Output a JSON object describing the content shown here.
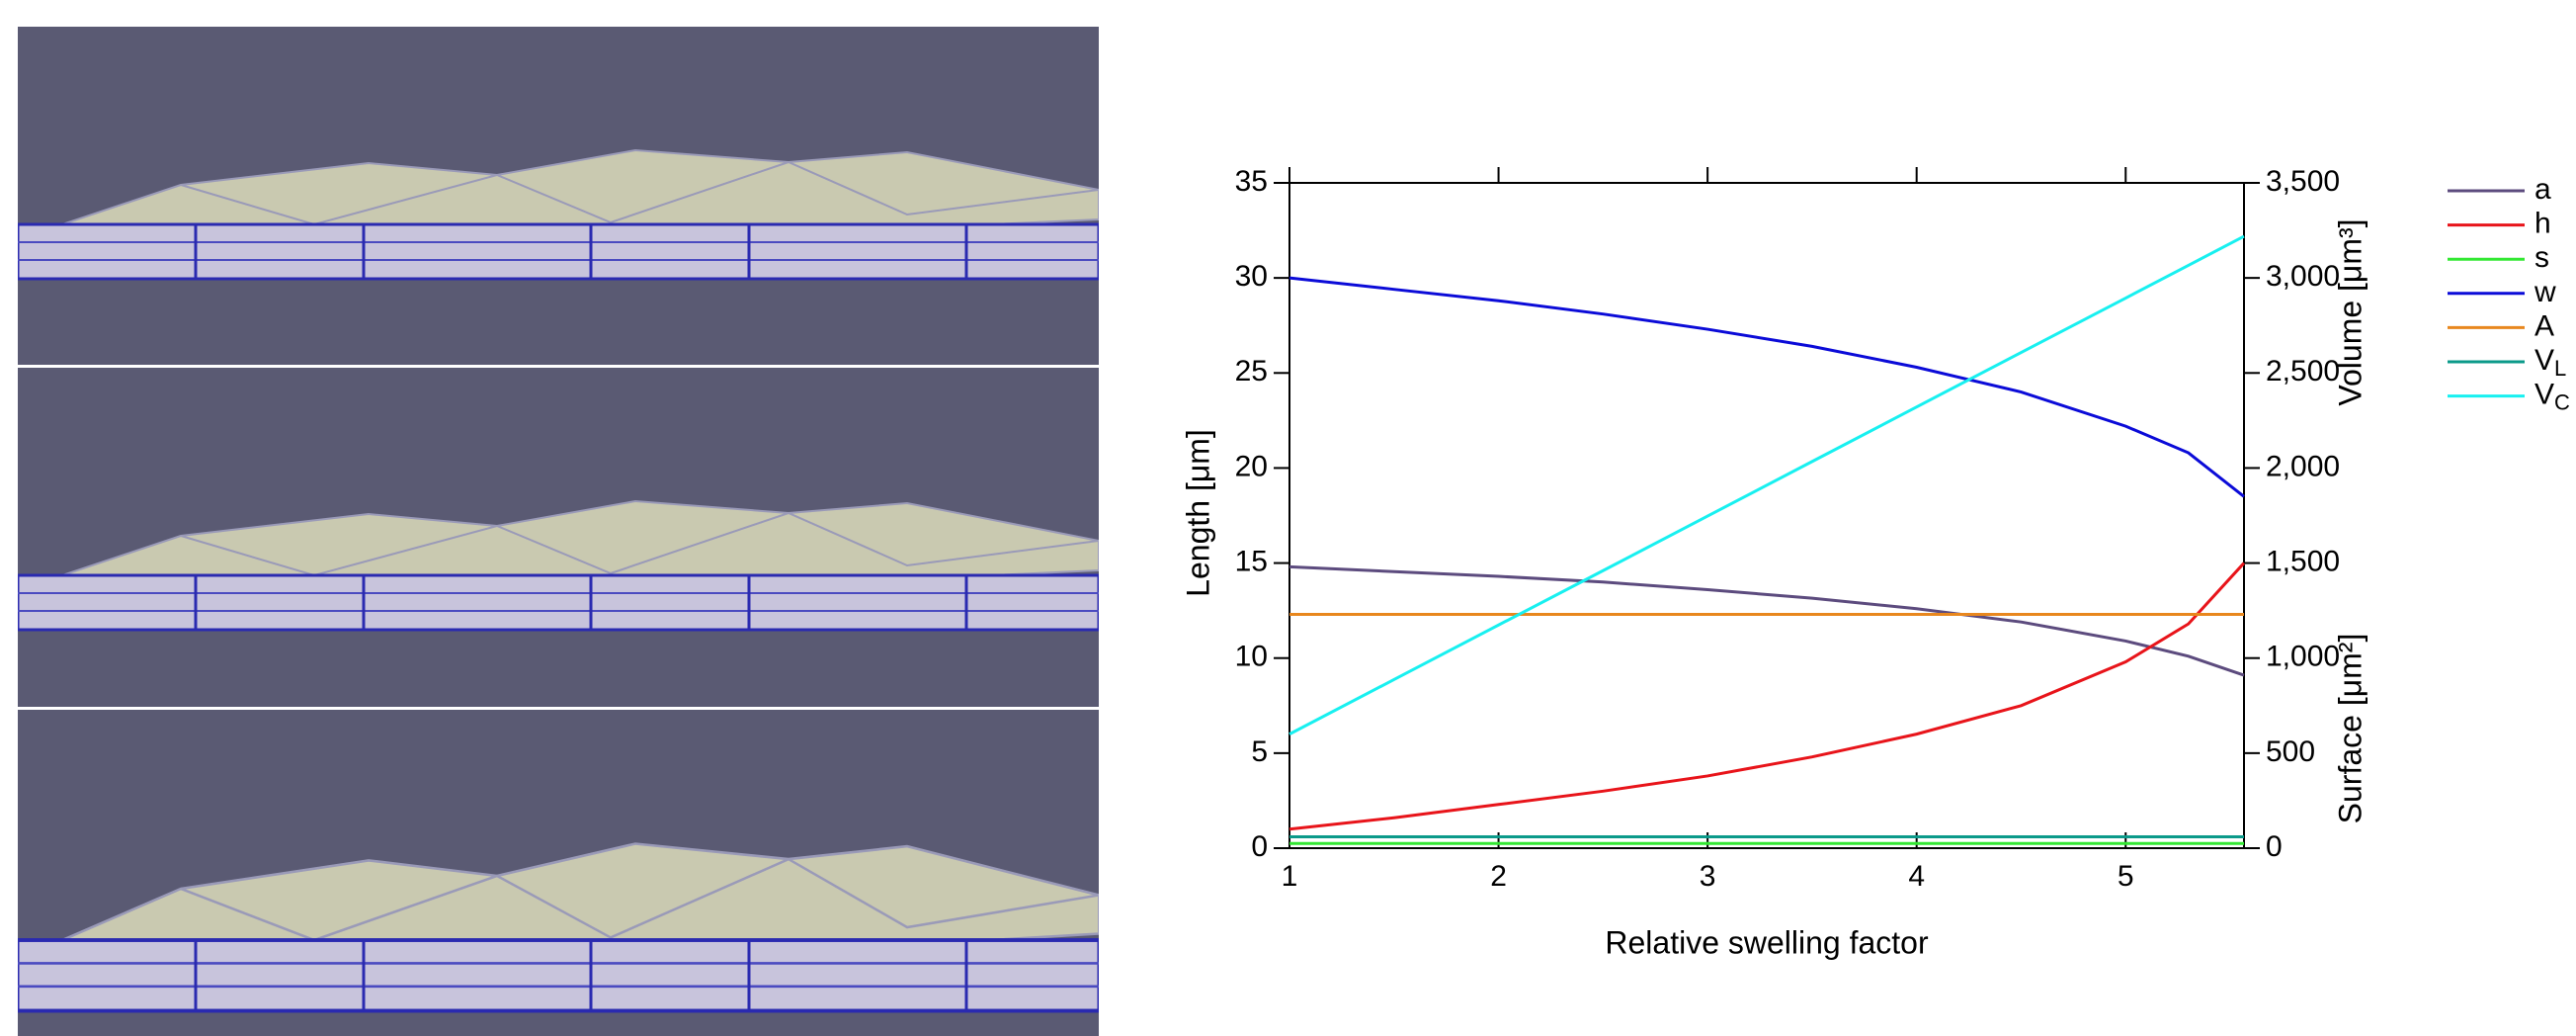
{
  "chart_data": {
    "type": "line",
    "x_label": "Relative swelling factor",
    "y_label": "Length [μm]",
    "y2_labels": [
      "Volume [μm³]",
      "Surface [μm²]"
    ],
    "x": [
      1,
      1.5,
      2,
      2.5,
      3,
      3.5,
      4,
      4.5,
      5,
      5.3,
      5.566
    ],
    "xlim": [
      1,
      5.566
    ],
    "xticks": [
      1,
      2,
      3,
      4,
      5
    ],
    "ylim": [
      0,
      35
    ],
    "yticks": [
      0,
      5,
      10,
      15,
      20,
      25,
      30,
      35
    ],
    "y2lim": [
      0,
      3500
    ],
    "y2ticks": [
      0,
      500,
      {
        "value": 1000,
        "label": "1,000"
      },
      {
        "value": 1500,
        "label": "1,500"
      },
      {
        "value": 2000,
        "label": "2,000"
      },
      {
        "value": 2500,
        "label": "2,500"
      },
      {
        "value": 3000,
        "label": "3,000"
      },
      {
        "value": 3500,
        "label": "3,500"
      }
    ],
    "series": [
      {
        "name": "a",
        "color": "#5c4b7e",
        "values": [
          14.8,
          14.55,
          14.3,
          14.0,
          13.6,
          13.15,
          12.6,
          11.9,
          10.9,
          10.1,
          9.1
        ]
      },
      {
        "name": "h",
        "color": "#e8141a",
        "values": [
          1.0,
          1.6,
          2.3,
          3.0,
          3.8,
          4.8,
          6.0,
          7.5,
          9.8,
          11.8,
          15.0
        ]
      },
      {
        "name": "s",
        "color": "#33e833",
        "values": [
          0.25,
          0.25,
          0.25,
          0.25,
          0.25,
          0.25,
          0.25,
          0.25,
          0.25,
          0.25,
          0.25
        ]
      },
      {
        "name": "w",
        "color": "#0b0bd8",
        "values": [
          30,
          29.4,
          28.8,
          28.1,
          27.3,
          26.4,
          25.3,
          24.0,
          22.2,
          20.8,
          18.5
        ]
      },
      {
        "name": "A",
        "color": "#e8871e",
        "axis": "y2",
        "values": [
          1230,
          1230,
          1230,
          1230,
          1230,
          1230,
          1230,
          1230,
          1230,
          1230,
          1230
        ]
      },
      {
        "name": "VL",
        "color": "#0b9a8a",
        "axis": "y2",
        "values": [
          60,
          60,
          60,
          60,
          60,
          60,
          60,
          60,
          60,
          60,
          60
        ]
      },
      {
        "name": "VC",
        "color": "#18f0f0",
        "axis": "y2",
        "values": [
          600,
          887,
          1174,
          1460,
          1747,
          2034,
          2321,
          2608,
          2894,
          3066,
          3219
        ]
      }
    ]
  }
}
